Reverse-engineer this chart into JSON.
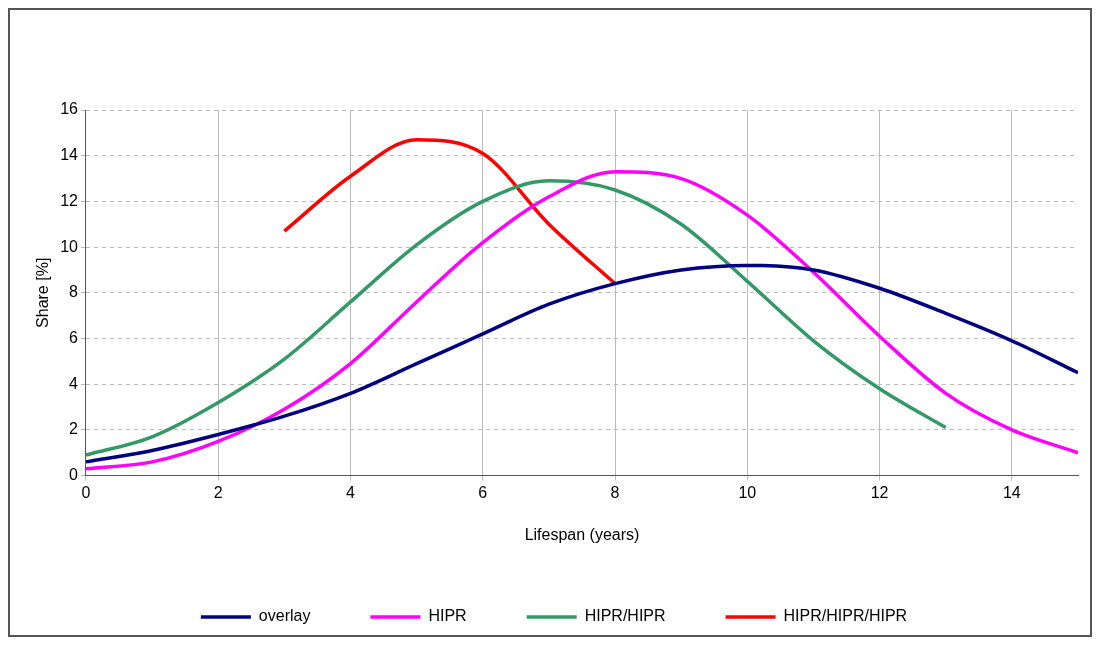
{
  "chart_data": {
    "type": "line",
    "xlabel": "Lifespan (years)",
    "ylabel": "Share [%]",
    "xlim": [
      0,
      15
    ],
    "xticks": [
      0,
      2,
      4,
      6,
      8,
      10,
      12,
      14
    ],
    "ylim": [
      0,
      16
    ],
    "yticks": [
      0,
      2,
      4,
      6,
      8,
      10,
      12,
      14,
      16
    ],
    "grid": true,
    "legend": "bottom",
    "marker": "none",
    "line_style": "solid",
    "series": [
      {
        "name": "overlay",
        "color": "#000080",
        "x": [
          0,
          1,
          2,
          3,
          4,
          5,
          6,
          7,
          8,
          9,
          10,
          11,
          12,
          13,
          14,
          15
        ],
        "values": [
          0.6,
          1.1,
          1.8,
          2.6,
          3.6,
          4.9,
          6.2,
          7.5,
          8.4,
          9.0,
          9.2,
          9.0,
          8.2,
          7.1,
          5.9,
          4.5
        ]
      },
      {
        "name": "HIPR",
        "color": "#ff00ff",
        "x": [
          0,
          1,
          2,
          3,
          4,
          5,
          6,
          7,
          8,
          9,
          10,
          11,
          12,
          13,
          14,
          15
        ],
        "values": [
          0.3,
          0.6,
          1.5,
          2.9,
          4.9,
          7.6,
          10.2,
          12.2,
          13.3,
          13.0,
          11.4,
          8.9,
          6.1,
          3.6,
          2.0,
          1.0
        ]
      },
      {
        "name": "HIPR/HIPR",
        "color": "#339966",
        "x": [
          0,
          1,
          2,
          3,
          4,
          5,
          6,
          7,
          8,
          9,
          10,
          11,
          12,
          13
        ],
        "values": [
          0.9,
          1.7,
          3.2,
          5.1,
          7.6,
          10.1,
          12.0,
          12.9,
          12.5,
          11.0,
          8.5,
          5.9,
          3.8,
          2.1
        ]
      },
      {
        "name": "HIPR/HIPR/HIPR",
        "color": "#ff0000",
        "x": [
          3,
          4,
          5,
          6,
          7,
          8
        ],
        "values": [
          10.7,
          13.1,
          14.7,
          14.1,
          11.0,
          8.4
        ]
      }
    ]
  }
}
